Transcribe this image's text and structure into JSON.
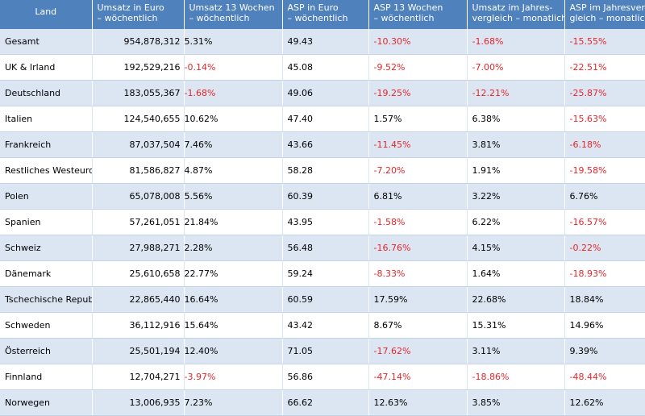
{
  "chart_data": {
    "type": "table",
    "columns": [
      "Land",
      "Umsatz in Euro\n– wöchentlich",
      "Umsatz 13 Wochen\n– wöchentlich",
      "ASP in Euro\n– wöchentlich",
      "ASP 13 Wochen\n– wöchentlich",
      "Umsatz im Jahres-\nvergleich – monatlich",
      "ASP im Jahresver-\ngleich – monatlich"
    ],
    "rows": [
      [
        "Gesamt",
        "954,878,312",
        "5.31%",
        "49.43",
        "-10.30%",
        "-1.68%",
        "-15.55%"
      ],
      [
        "UK & Irland",
        "192,529,216",
        "-0.14%",
        "45.08",
        "-9.52%",
        "-7.00%",
        "-22.51%"
      ],
      [
        "Deutschland",
        "183,055,367",
        "-1.68%",
        "49.06",
        "-19.25%",
        "-12.21%",
        "-25.87%"
      ],
      [
        "Italien",
        "124,540,655",
        "10.62%",
        "47.40",
        "1.57%",
        "6.38%",
        "-15.63%"
      ],
      [
        "Frankreich",
        "87,037,504",
        "7.46%",
        "43.66",
        "-11.45%",
        "3.81%",
        "-6.18%"
      ],
      [
        "Restliches Westeuropa",
        "81,586,827",
        "4.87%",
        "58.28",
        "-7.20%",
        "1.91%",
        "-19.58%"
      ],
      [
        "Polen",
        "65,078,008",
        "5.56%",
        "60.39",
        "6.81%",
        "3.22%",
        "6.76%"
      ],
      [
        "Spanien",
        "57,261,051",
        "21.84%",
        "43.95",
        "-1.58%",
        "6.22%",
        "-16.57%"
      ],
      [
        "Schweiz",
        "27,988,271",
        "2.28%",
        "56.48",
        "-16.76%",
        "4.15%",
        "-0.22%"
      ],
      [
        "Dänemark",
        "25,610,658",
        "22.77%",
        "59.24",
        "-8.33%",
        "1.64%",
        "-18.93%"
      ],
      [
        "Tschechische Republik",
        "22,865,440",
        "16.64%",
        "60.59",
        "17.59%",
        "22.68%",
        "18.84%"
      ],
      [
        "Schweden",
        "36,112,916",
        "15.64%",
        "43.42",
        "8.67%",
        "15.31%",
        "14.96%"
      ],
      [
        "Österreich",
        "25,501,194",
        "12.40%",
        "71.05",
        "-17.62%",
        "3.11%",
        "9.39%"
      ],
      [
        "Finnland",
        "12,704,271",
        "-3.97%",
        "56.86",
        "-47.14%",
        "-18.86%",
        "-48.44%"
      ],
      [
        "Norwegen",
        "13,006,935",
        "7.23%",
        "66.62",
        "12.63%",
        "3.85%",
        "12.62%"
      ]
    ],
    "colors": {
      "header_bg": "#4f81bd",
      "header_text": "#ffffff",
      "band_row": "#dce6f2",
      "plain_row": "#ffffff",
      "negative_text": "#e8242a"
    }
  }
}
